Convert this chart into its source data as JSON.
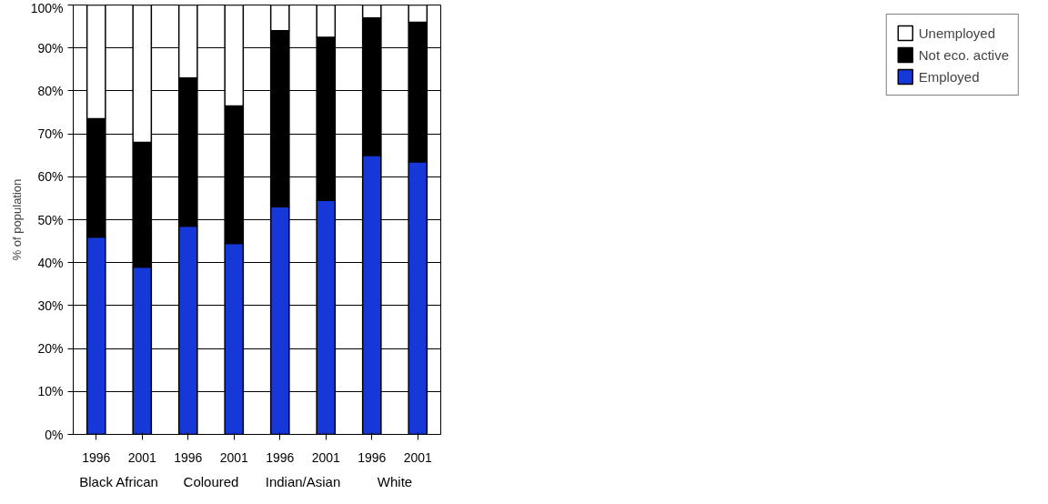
{
  "chart_data": {
    "type": "bar",
    "stacked": true,
    "ylabel": "% of population",
    "categories": [
      "1996",
      "2001",
      "1996",
      "2001",
      "1996",
      "2001",
      "1996",
      "2001"
    ],
    "annotations": [
      "Black African",
      "Coloured",
      "Indian/Asian",
      "White"
    ],
    "series": [
      {
        "name": "Employed",
        "color": "#1638d8",
        "values": [
          46,
          39,
          48.5,
          44.5,
          53,
          54.5,
          65,
          63.5
        ]
      },
      {
        "name": "Not eco. active",
        "color": "#000000",
        "values": [
          27.5,
          29,
          34.5,
          32,
          41,
          38,
          32,
          32.5
        ]
      },
      {
        "name": "Unemployed",
        "color": "#ffffff",
        "values": [
          26.5,
          32,
          17,
          23.5,
          6,
          7.5,
          3,
          4
        ]
      }
    ],
    "ylim": [
      0,
      100
    ],
    "yticks": [
      {
        "value": 0,
        "label": "0%"
      },
      {
        "value": 10,
        "label": "10%"
      },
      {
        "value": 20,
        "label": "20%"
      },
      {
        "value": 30,
        "label": "30%"
      },
      {
        "value": 40,
        "label": "40%"
      },
      {
        "value": 50,
        "label": "50%"
      },
      {
        "value": 60,
        "label": "60%"
      },
      {
        "value": 70,
        "label": "70%"
      },
      {
        "value": 80,
        "label": "80%"
      },
      {
        "value": 90,
        "label": "90%"
      },
      {
        "value": 100,
        "label": "100%"
      }
    ],
    "grid": "y",
    "legend": "right"
  }
}
